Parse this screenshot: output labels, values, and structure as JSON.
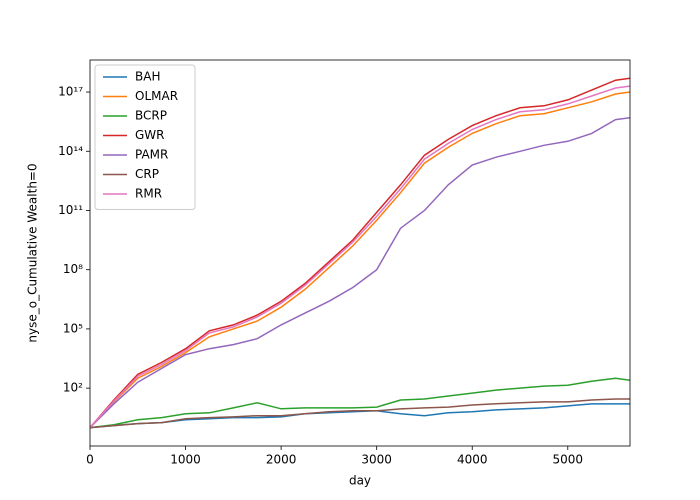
{
  "chart_data": {
    "type": "line",
    "xlabel": "day",
    "ylabel": "nyse_o_Cumulative Wealth=0",
    "x": [
      0,
      250,
      500,
      750,
      1000,
      1250,
      1500,
      1750,
      2000,
      2250,
      2500,
      2750,
      3000,
      3250,
      3500,
      3750,
      4000,
      4250,
      4500,
      4750,
      5000,
      5250,
      5500,
      5651
    ],
    "series": [
      {
        "name": "BAH",
        "color": "#1f77b4",
        "values": [
          1,
          1.26,
          1.6,
          1.8,
          2.5,
          2.8,
          3.2,
          3.2,
          3.5,
          5,
          5.6,
          6.3,
          7.1,
          5,
          4,
          5.6,
          6.3,
          7.9,
          8.9,
          10,
          12.6,
          15.8,
          15.8,
          15.8
        ]
      },
      {
        "name": "OLMAR",
        "color": "#ff7f0e",
        "values": [
          1,
          20.0,
          320.0,
          1260.0,
          6300.0,
          40000.0,
          100000.0,
          250000.0,
          1260000.0,
          10000000.0,
          126000000.0,
          1600000000.0,
          32000000000.0,
          800000000000.0,
          25000000000000.0,
          160000000000000.0,
          800000000000000.0,
          2500000000000000.0,
          6300000000000000.0,
          8000000000000000.0,
          1.6e+16,
          3.2e+16,
          8e+16,
          1e+17
        ]
      },
      {
        "name": "BCRP",
        "color": "#2ca02c",
        "values": [
          1,
          1.4,
          2.5,
          3.2,
          5,
          5.6,
          10,
          18,
          9,
          10,
          10,
          10,
          11,
          25,
          28,
          40,
          56,
          79,
          100,
          126,
          141,
          224,
          316,
          251
        ]
      },
      {
        "name": "GWR",
        "color": "#d62728",
        "values": [
          1,
          25.0,
          500.0,
          2000.0,
          10000.0,
          80000.0,
          160000.0,
          500000.0,
          2500000.0,
          20000000.0,
          250000000.0,
          3200000000.0,
          80000000000.0,
          2000000000000.0,
          63000000000000.0,
          400000000000000.0,
          2000000000000000.0,
          6300000000000000.0,
          1.6e+16,
          2e+16,
          4e+16,
          1.26e+17,
          4e+17,
          5e+17
        ]
      },
      {
        "name": "PAMR",
        "color": "#9467bd",
        "values": [
          1,
          16.0,
          200.0,
          1000.0,
          5000.0,
          10000.0,
          16000.0,
          32000.0,
          160000.0,
          630000.0,
          2500000.0,
          12600000.0,
          100000000.0,
          12600000000.0,
          100000000000.0,
          2000000000000.0,
          20000000000000.0,
          50000000000000.0,
          100000000000000.0,
          200000000000000.0,
          320000000000000.0,
          800000000000000.0,
          4000000000000000.0,
          5000000000000000.0
        ]
      },
      {
        "name": "CRP",
        "color": "#8c564b",
        "values": [
          1,
          1.26,
          1.6,
          1.8,
          2.8,
          3.2,
          3.5,
          4,
          4,
          5,
          6.3,
          7.1,
          7.1,
          8.9,
          10,
          11,
          14,
          16,
          18,
          20,
          20,
          25,
          28,
          28
        ]
      },
      {
        "name": "RMR",
        "color": "#e377c2",
        "values": [
          1,
          22.0,
          400.0,
          1600.0,
          8000.0,
          63000.0,
          126000.0,
          400000.0,
          2000000.0,
          16000000.0,
          200000000.0,
          2500000000.0,
          50000000000.0,
          1260000000000.0,
          40000000000000.0,
          250000000000000.0,
          1260000000000000.0,
          4000000000000000.0,
          1e+16,
          1.26e+16,
          2.5e+16,
          6.3e+16,
          1.6e+17,
          2e+17
        ]
      }
    ],
    "xlim": [
      0,
      5651
    ],
    "xticks": [
      0,
      1000,
      2000,
      3000,
      4000,
      5000
    ],
    "ylim": [
      0.117,
      4.2e+18
    ],
    "ylog": true,
    "yticks": [
      {
        "value": 100,
        "label": "10²"
      },
      {
        "value": 100000,
        "label": "10⁵"
      },
      {
        "value": 100000000,
        "label": "10⁸"
      },
      {
        "value": 100000000000,
        "label": "10¹¹"
      },
      {
        "value": 100000000000000,
        "label": "10¹⁴"
      },
      {
        "value": 100000000000000000,
        "label": "10¹⁷"
      }
    ],
    "legend": "upper left"
  }
}
